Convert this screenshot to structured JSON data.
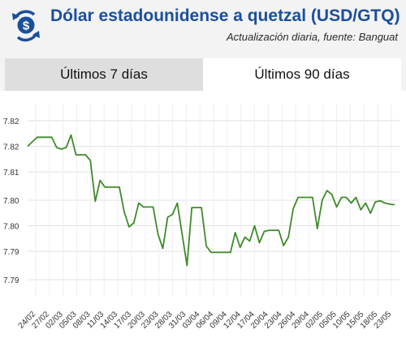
{
  "header": {
    "title": "Dólar estadounidense a quetzal (USD/GTQ)",
    "subtitle": "Actualización diaria, fuente: Banguat",
    "logo_icon": "currency-exchange-icon"
  },
  "tabs": [
    {
      "label": "Últimos 7 días",
      "active": false
    },
    {
      "label": "Últimos 90 días",
      "active": true
    }
  ],
  "colors": {
    "title": "#1a4f9c",
    "line": "#3f8a2a",
    "logo": "#1a4f9c"
  },
  "chart_data": {
    "type": "line",
    "title": "",
    "xlabel": "",
    "ylabel": "",
    "ylim": [
      7.7925,
      7.8265
    ],
    "y_tick_labels": [
      "7.82",
      "7.82",
      "7.81",
      "7.80",
      "7.80",
      "7.79",
      "7.79"
    ],
    "y_tick_values": [
      7.8235,
      7.819,
      7.8145,
      7.8095,
      7.805,
      7.8005,
      7.7955
    ],
    "x_tick_labels": [
      "24/02",
      "27/02",
      "02/03",
      "05/03",
      "08/03",
      "11/03",
      "14/03",
      "17/03",
      "20/03",
      "23/03",
      "28/03",
      "31/03",
      "03/04",
      "06/04",
      "09/04",
      "12/04",
      "17/04",
      "20/04",
      "23/04",
      "26/04",
      "29/04",
      "02/05",
      "05/05",
      "10/05",
      "15/05",
      "18/05",
      "23/05"
    ],
    "grid": true,
    "series": [
      {
        "values": [
          7.819,
          7.8198,
          7.8206,
          7.8206,
          7.8206,
          7.8206,
          7.8188,
          7.8185,
          7.8188,
          7.821,
          7.8175,
          7.8175,
          7.8175,
          7.8165,
          7.8093,
          7.813,
          7.8118,
          7.8118,
          7.8118,
          7.8118,
          7.8075,
          7.8048,
          7.8055,
          7.809,
          7.8083,
          7.8083,
          7.8083,
          7.8035,
          7.801,
          7.8065,
          7.807,
          7.809,
          7.8035,
          7.798,
          7.8082,
          7.8082,
          7.8082,
          7.8014,
          7.8003,
          7.8003,
          7.8003,
          7.8003,
          7.8003,
          7.8038,
          7.8012,
          7.803,
          7.8023,
          7.805,
          7.802,
          7.804,
          7.8042,
          7.8042,
          7.8042,
          7.8015,
          7.803,
          7.808,
          7.81,
          7.81,
          7.81,
          7.81,
          7.8045,
          7.8095,
          7.8112,
          7.8105,
          7.8083,
          7.81,
          7.81,
          7.809,
          7.81,
          7.8078,
          7.809,
          7.8072,
          7.8092,
          7.8094,
          7.809,
          7.8088,
          7.8087
        ]
      }
    ]
  }
}
